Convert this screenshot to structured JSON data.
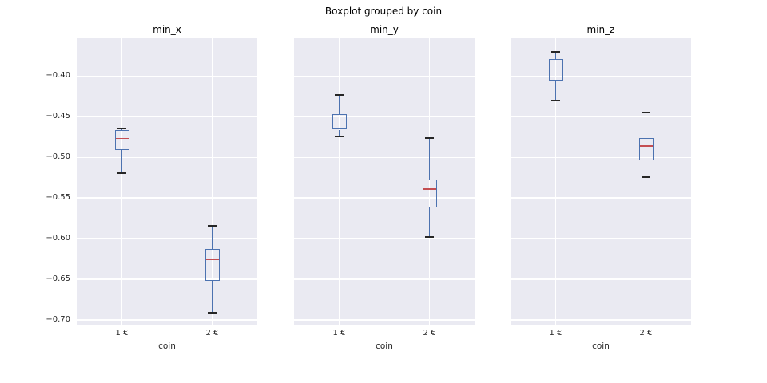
{
  "figure": {
    "title": "Boxplot grouped by coin",
    "background_color": "#ffffff",
    "axes_background_color": "#eaeaf2",
    "grid_color": "#ffffff",
    "box_color": "#4c72b0",
    "median_color": "#c44e52",
    "cap_color": "#262626",
    "text_color": "#262626"
  },
  "chart_data": [
    {
      "type": "boxplot",
      "title": "min_x",
      "xlabel": "coin",
      "categories": [
        "1 €",
        "2 €"
      ],
      "ylim": [
        -0.706,
        -0.353
      ],
      "yticks": [
        -0.4,
        -0.45,
        -0.5,
        -0.55,
        -0.6,
        -0.65,
        -0.7
      ],
      "grid": true,
      "boxes": [
        {
          "category": "1 €",
          "whisker_low": -0.519,
          "q1": -0.491,
          "median": -0.477,
          "q3": -0.466,
          "whisker_high": -0.464
        },
        {
          "category": "2 €",
          "whisker_low": -0.691,
          "q1": -0.652,
          "median": -0.626,
          "q3": -0.613,
          "whisker_high": -0.584
        }
      ]
    },
    {
      "type": "boxplot",
      "title": "min_y",
      "xlabel": "coin",
      "categories": [
        "1 €",
        "2 €"
      ],
      "ylim": [
        -0.706,
        -0.353
      ],
      "yticks": [
        -0.4,
        -0.45,
        -0.5,
        -0.55,
        -0.6,
        -0.65,
        -0.7
      ],
      "grid": true,
      "boxes": [
        {
          "category": "1 €",
          "whisker_low": -0.474,
          "q1": -0.466,
          "median": -0.449,
          "q3": -0.447,
          "whisker_high": -0.423
        },
        {
          "category": "2 €",
          "whisker_low": -0.598,
          "q1": -0.562,
          "median": -0.539,
          "q3": -0.527,
          "whisker_high": -0.476
        }
      ]
    },
    {
      "type": "boxplot",
      "title": "min_z",
      "xlabel": "coin",
      "categories": [
        "1 €",
        "2 €"
      ],
      "ylim": [
        -0.706,
        -0.353
      ],
      "yticks": [
        -0.4,
        -0.45,
        -0.5,
        -0.55,
        -0.6,
        -0.65,
        -0.7
      ],
      "grid": true,
      "boxes": [
        {
          "category": "1 €",
          "whisker_low": -0.43,
          "q1": -0.405,
          "median": -0.396,
          "q3": -0.379,
          "whisker_high": -0.37
        },
        {
          "category": "2 €",
          "whisker_low": -0.524,
          "q1": -0.504,
          "median": -0.486,
          "q3": -0.476,
          "whisker_high": -0.445
        }
      ]
    }
  ]
}
